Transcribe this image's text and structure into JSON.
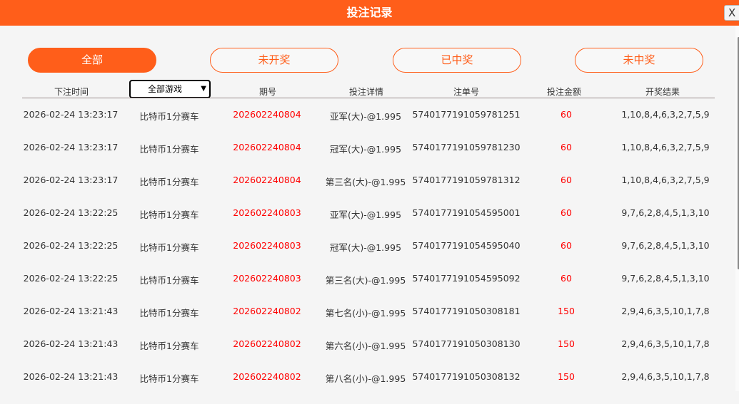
{
  "header": {
    "title": "投注记录",
    "close_label": "X"
  },
  "tabs": [
    {
      "label": "全部",
      "active": true
    },
    {
      "label": "未开奖"
    },
    {
      "label": "已中奖"
    },
    {
      "label": "未中奖"
    }
  ],
  "columns": {
    "time": "下注时间",
    "game_filter": "全部游戏",
    "period": "期号",
    "detail": "投注详情",
    "order": "注单号",
    "amount": "投注金额",
    "result": "开奖结果"
  },
  "colors": {
    "accent": "#ff5e1a",
    "highlight": "#ff0000"
  },
  "rows": [
    {
      "time": "2026-02-24 13:23:17",
      "game": "比特币1分赛车",
      "period": "202602240804",
      "detail": "亚军(大)-@1.995",
      "order": "5740177191059781251",
      "amount": "60",
      "result": "1,10,8,4,6,3,2,7,5,9"
    },
    {
      "time": "2026-02-24 13:23:17",
      "game": "比特币1分赛车",
      "period": "202602240804",
      "detail": "冠军(大)-@1.995",
      "order": "5740177191059781230",
      "amount": "60",
      "result": "1,10,8,4,6,3,2,7,5,9"
    },
    {
      "time": "2026-02-24 13:23:17",
      "game": "比特币1分赛车",
      "period": "202602240804",
      "detail": "第三名(大)-@1.995",
      "order": "5740177191059781312",
      "amount": "60",
      "result": "1,10,8,4,6,3,2,7,5,9"
    },
    {
      "time": "2026-02-24 13:22:25",
      "game": "比特币1分赛车",
      "period": "202602240803",
      "detail": "亚军(大)-@1.995",
      "order": "5740177191054595001",
      "amount": "60",
      "result": "9,7,6,2,8,4,5,1,3,10"
    },
    {
      "time": "2026-02-24 13:22:25",
      "game": "比特币1分赛车",
      "period": "202602240803",
      "detail": "冠军(大)-@1.995",
      "order": "5740177191054595040",
      "amount": "60",
      "result": "9,7,6,2,8,4,5,1,3,10"
    },
    {
      "time": "2026-02-24 13:22:25",
      "game": "比特币1分赛车",
      "period": "202602240803",
      "detail": "第三名(大)-@1.995",
      "order": "5740177191054595092",
      "amount": "60",
      "result": "9,7,6,2,8,4,5,1,3,10"
    },
    {
      "time": "2026-02-24 13:21:43",
      "game": "比特币1分赛车",
      "period": "202602240802",
      "detail": "第七名(小)-@1.995",
      "order": "5740177191050308181",
      "amount": "150",
      "result": "2,9,4,6,3,5,10,1,7,8"
    },
    {
      "time": "2026-02-24 13:21:43",
      "game": "比特币1分赛车",
      "period": "202602240802",
      "detail": "第六名(小)-@1.995",
      "order": "5740177191050308130",
      "amount": "150",
      "result": "2,9,4,6,3,5,10,1,7,8"
    },
    {
      "time": "2026-02-24 13:21:43",
      "game": "比特币1分赛车",
      "period": "202602240802",
      "detail": "第八名(小)-@1.995",
      "order": "5740177191050308132",
      "amount": "150",
      "result": "2,9,4,6,3,5,10,1,7,8"
    }
  ]
}
